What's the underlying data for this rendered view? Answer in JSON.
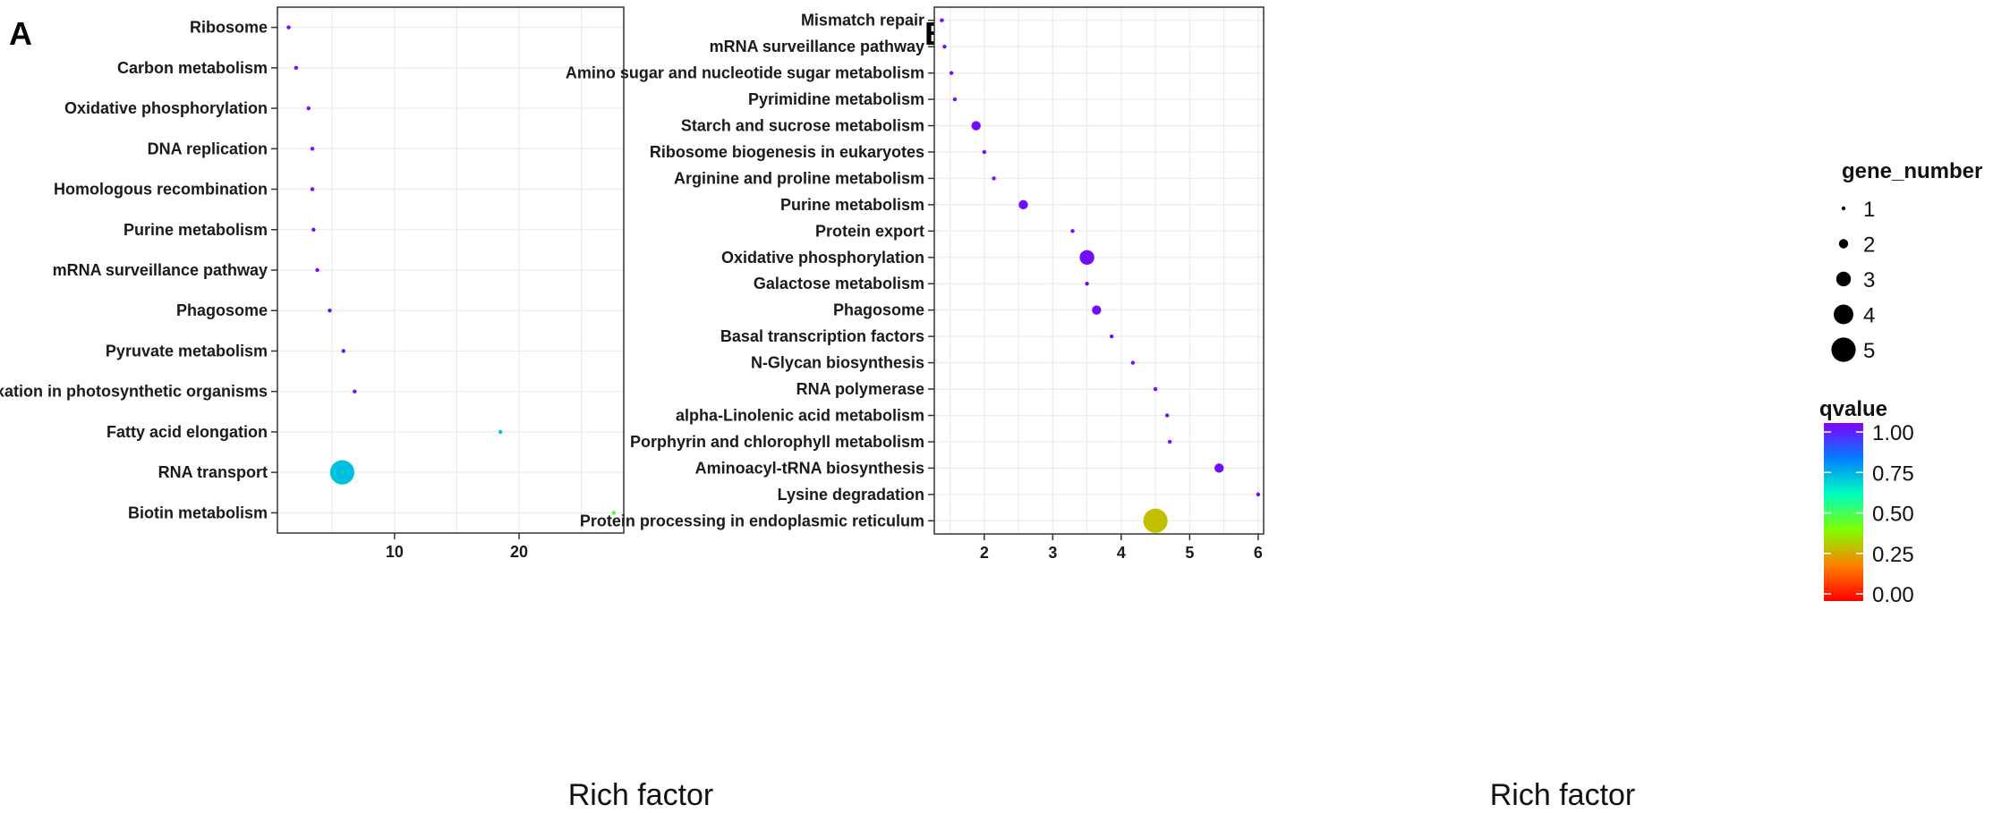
{
  "chart_data": [
    {
      "panel": "A",
      "type": "scatter",
      "xlabel": "Rich factor",
      "ylabel": "",
      "xlim": [
        0.6,
        28.4
      ],
      "xticks": [
        10,
        20
      ],
      "points": [
        {
          "pathway": "Ribosome",
          "rich_factor": 1.5,
          "gene_number": 1,
          "qvalue": 0.98
        },
        {
          "pathway": "Carbon metabolism",
          "rich_factor": 2.1,
          "gene_number": 1,
          "qvalue": 0.98
        },
        {
          "pathway": "Oxidative phosphorylation",
          "rich_factor": 3.1,
          "gene_number": 1,
          "qvalue": 0.98
        },
        {
          "pathway": "DNA replication",
          "rich_factor": 3.4,
          "gene_number": 1,
          "qvalue": 0.98
        },
        {
          "pathway": "Homologous recombination",
          "rich_factor": 3.4,
          "gene_number": 1,
          "qvalue": 0.98
        },
        {
          "pathway": "Purine metabolism",
          "rich_factor": 3.5,
          "gene_number": 1,
          "qvalue": 0.98
        },
        {
          "pathway": "mRNA surveillance pathway",
          "rich_factor": 3.8,
          "gene_number": 1,
          "qvalue": 0.98
        },
        {
          "pathway": "Phagosome",
          "rich_factor": 4.8,
          "gene_number": 1,
          "qvalue": 0.98
        },
        {
          "pathway": "Pyruvate metabolism",
          "rich_factor": 5.9,
          "gene_number": 1,
          "qvalue": 0.98
        },
        {
          "pathway": "Carbon fixation in photosynthetic organisms",
          "rich_factor": 6.8,
          "gene_number": 1,
          "qvalue": 0.98
        },
        {
          "pathway": "Fatty acid elongation",
          "rich_factor": 18.5,
          "gene_number": 1,
          "qvalue": 0.7
        },
        {
          "pathway": "RNA transport",
          "rich_factor": 5.8,
          "gene_number": 5,
          "qvalue": 0.7
        },
        {
          "pathway": "Biotin metabolism",
          "rich_factor": 27.6,
          "gene_number": 1,
          "qvalue": 0.45
        }
      ]
    },
    {
      "panel": "B",
      "type": "scatter",
      "xlabel": "Rich factor",
      "ylabel": "",
      "xlim": [
        1.27,
        6.08
      ],
      "xticks": [
        2,
        3,
        4,
        5,
        6
      ],
      "points": [
        {
          "pathway": "Mismatch repair",
          "rich_factor": 1.38,
          "gene_number": 1,
          "qvalue": 0.98
        },
        {
          "pathway": "mRNA surveillance pathway",
          "rich_factor": 1.42,
          "gene_number": 1,
          "qvalue": 0.98
        },
        {
          "pathway": "Amino sugar and nucleotide sugar metabolism",
          "rich_factor": 1.52,
          "gene_number": 1,
          "qvalue": 0.98
        },
        {
          "pathway": "Pyrimidine metabolism",
          "rich_factor": 1.57,
          "gene_number": 1,
          "qvalue": 0.98
        },
        {
          "pathway": "Starch and sucrose metabolism",
          "rich_factor": 1.88,
          "gene_number": 2,
          "qvalue": 0.98
        },
        {
          "pathway": "Ribosome biogenesis in eukaryotes",
          "rich_factor": 2.0,
          "gene_number": 1,
          "qvalue": 0.98
        },
        {
          "pathway": "Arginine and proline metabolism",
          "rich_factor": 2.14,
          "gene_number": 1,
          "qvalue": 0.98
        },
        {
          "pathway": "Purine metabolism",
          "rich_factor": 2.57,
          "gene_number": 2,
          "qvalue": 0.98
        },
        {
          "pathway": "Protein export",
          "rich_factor": 3.29,
          "gene_number": 1,
          "qvalue": 0.98
        },
        {
          "pathway": "Oxidative phosphorylation",
          "rich_factor": 3.5,
          "gene_number": 3,
          "qvalue": 0.98
        },
        {
          "pathway": "Galactose metabolism",
          "rich_factor": 3.5,
          "gene_number": 1,
          "qvalue": 0.98
        },
        {
          "pathway": "Phagosome",
          "rich_factor": 3.64,
          "gene_number": 2,
          "qvalue": 0.98
        },
        {
          "pathway": "Basal transcription factors",
          "rich_factor": 3.86,
          "gene_number": 1,
          "qvalue": 0.98
        },
        {
          "pathway": "N-Glycan biosynthesis",
          "rich_factor": 4.17,
          "gene_number": 1,
          "qvalue": 0.98
        },
        {
          "pathway": "RNA polymerase",
          "rich_factor": 4.5,
          "gene_number": 1,
          "qvalue": 0.98
        },
        {
          "pathway": "alpha-Linolenic acid metabolism",
          "rich_factor": 4.67,
          "gene_number": 1,
          "qvalue": 0.98
        },
        {
          "pathway": "Porphyrin and chlorophyll metabolism",
          "rich_factor": 4.71,
          "gene_number": 1,
          "qvalue": 0.98
        },
        {
          "pathway": "Aminoacyl-tRNA biosynthesis",
          "rich_factor": 5.43,
          "gene_number": 2,
          "qvalue": 0.98
        },
        {
          "pathway": "Lysine degradation",
          "rich_factor": 6.0,
          "gene_number": 1,
          "qvalue": 0.98
        },
        {
          "pathway": "Protein processing in endoplasmic reticulum",
          "rich_factor": 4.5,
          "gene_number": 5,
          "qvalue": 0.3
        }
      ]
    }
  ],
  "legend": {
    "size_title": "gene_number",
    "size_values": [
      1,
      2,
      3,
      4,
      5
    ],
    "color_title": "qvalue",
    "color_ticks": [
      "1.00",
      "0.75",
      "0.50",
      "0.25",
      "0.00"
    ],
    "color_tick_values": [
      1.0,
      0.75,
      0.5,
      0.25,
      0.0
    ],
    "color_stops": [
      "#ff0000",
      "#ff8000",
      "#80ff00",
      "#00ffbf",
      "#0080ff",
      "#8000ff"
    ]
  }
}
